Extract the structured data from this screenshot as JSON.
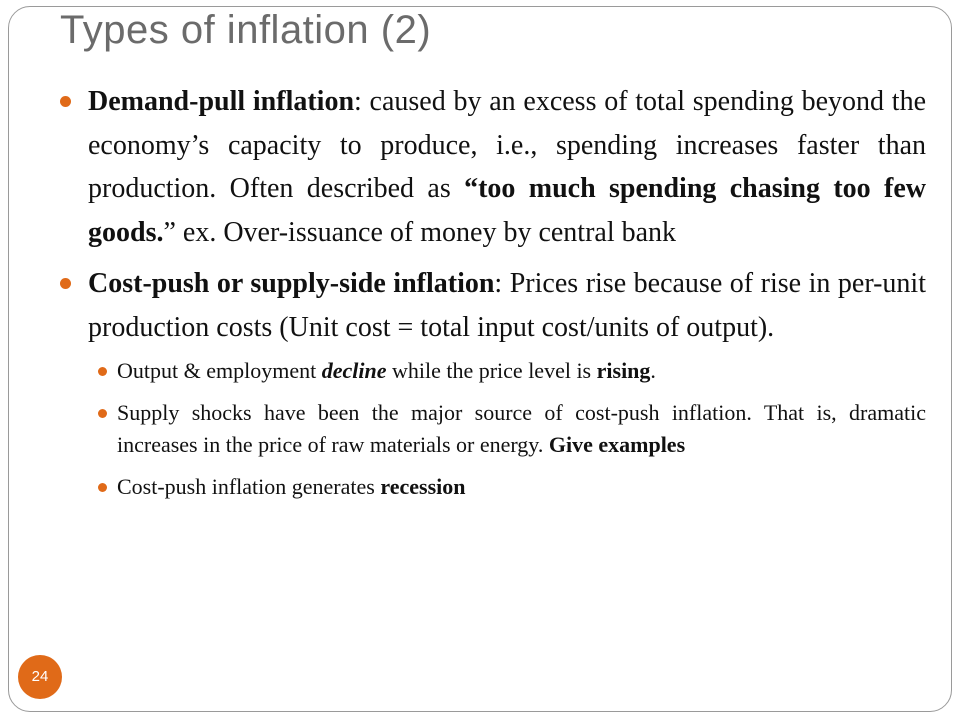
{
  "slide": {
    "title": "Types of inflation (2)",
    "page_number": "24",
    "accent_color": "#e06a18",
    "title_color": "#6b6b6b"
  },
  "bullets": [
    {
      "term": "Demand-pull inflation",
      "colon": ":",
      "text_1": "  caused by an excess of total spending beyond the economy’s capacity to produce, i.e., spending increases faster than production.  Often described as ",
      "emphasis": "“too much spending chasing too few goods.",
      "text_2": "” ex. Over-issuance of money by central bank"
    },
    {
      "term": "Cost-push or supply-side inflation",
      "colon": ":",
      "text_1": "  Prices rise because of rise in per-unit production costs (Unit cost = total input cost/units of output).",
      "sub_bullets": [
        {
          "text_a": "Output & employment ",
          "italic_bold": "decline",
          "text_b": " while the price level is ",
          "bold": "rising",
          "text_c": "."
        },
        {
          "text_a": "Supply shocks have been the major source of cost-push inflation.  That is, dramatic increases in the price of raw materials or energy. ",
          "bold": "Give examples"
        },
        {
          "text_a": "Cost-push inflation generates ",
          "bold": "recession"
        }
      ]
    }
  ]
}
